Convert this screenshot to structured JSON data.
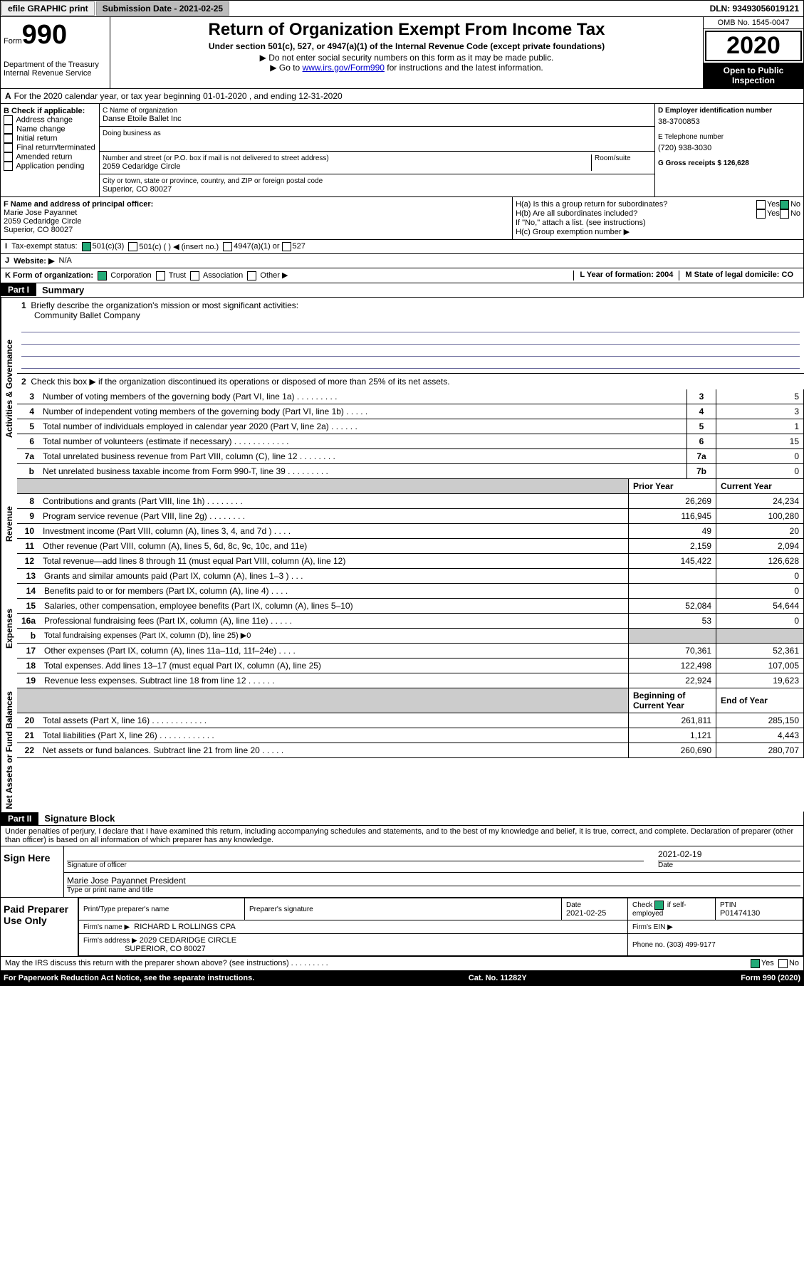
{
  "header": {
    "efile_label": "efile GRAPHIC print",
    "submission_label": "Submission Date - 2021-02-25",
    "dln": "DLN: 93493056019121"
  },
  "titleblock": {
    "form_label": "Form",
    "form_num": "990",
    "title": "Return of Organization Exempt From Income Tax",
    "subtitle1": "Under section 501(c), 527, or 4947(a)(1) of the Internal Revenue Code (except private foundations)",
    "subtitle2": "▶ Do not enter social security numbers on this form as it may be made public.",
    "subtitle3_pre": "▶ Go to ",
    "subtitle3_link": "www.irs.gov/Form990",
    "subtitle3_post": " for instructions and the latest information.",
    "dept1": "Department of the Treasury",
    "dept2": "Internal Revenue Service",
    "omb": "OMB No. 1545-0047",
    "year": "2020",
    "inspection": "Open to Public Inspection"
  },
  "period": "For the 2020 calendar year, or tax year beginning 01-01-2020    , and ending 12-31-2020",
  "b": {
    "header": "B Check if applicable:",
    "i1": "Address change",
    "i2": "Name change",
    "i3": "Initial return",
    "i4": "Final return/terminated",
    "i5": "Amended return",
    "i6": "Application pending"
  },
  "c": {
    "name_label": "C Name of organization",
    "name": "Danse Etoile Ballet Inc",
    "dba_label": "Doing business as",
    "addr_label": "Number and street (or P.O. box if mail is not delivered to street address)",
    "room_label": "Room/suite",
    "addr": "2059 Cedaridge Circle",
    "city_label": "City or town, state or province, country, and ZIP or foreign postal code",
    "city": "Superior, CO  80027"
  },
  "d": {
    "label": "D Employer identification number",
    "value": "38-3700853"
  },
  "e": {
    "label": "E Telephone number",
    "value": "(720) 938-3030"
  },
  "g": {
    "label": "G Gross receipts $ 126,628"
  },
  "f": {
    "label": "F  Name and address of principal officer:",
    "name": "Marie Jose Payannet",
    "addr1": "2059 Cedaridge Circle",
    "addr2": "Superior, CO  80027"
  },
  "h": {
    "a": "H(a)  Is this a group return for subordinates?",
    "b": "H(b)  Are all subordinates included?",
    "b2": "If \"No,\" attach a list. (see instructions)",
    "c": "H(c)  Group exemption number ▶"
  },
  "i": {
    "label": "Tax-exempt status:",
    "o1": "501(c)(3)",
    "o2": "501(c) (   ) ◀ (insert no.)",
    "o3": "4947(a)(1) or",
    "o4": "527"
  },
  "j": {
    "label": "Website: ▶",
    "value": "N/A"
  },
  "k": {
    "label": "K Form of organization:",
    "o1": "Corporation",
    "o2": "Trust",
    "o3": "Association",
    "o4": "Other ▶"
  },
  "l": {
    "label": "L Year of formation: 2004"
  },
  "m": {
    "label": "M State of legal domicile: CO"
  },
  "part1": {
    "tag": "Part I",
    "title": "Summary",
    "q1": "Briefly describe the organization's mission or most significant activities:",
    "q1a": "Community Ballet Company",
    "q2": "Check this box ▶         if the organization discontinued its operations or disposed of more than 25% of its net assets.",
    "rows": [
      {
        "n": "3",
        "t": "Number of voting members of the governing body (Part VI, line 1a)   .     .     .     .     .     .     .     .     .",
        "r": "3",
        "v": "5"
      },
      {
        "n": "4",
        "t": "Number of independent voting members of the governing body (Part VI, line 1b)   .     .     .     .     .",
        "r": "4",
        "v": "3"
      },
      {
        "n": "5",
        "t": "Total number of individuals employed in calendar year 2020 (Part V, line 2a)   .     .     .     .     .     .",
        "r": "5",
        "v": "1"
      },
      {
        "n": "6",
        "t": "Total number of volunteers (estimate if necessary)    .     .     .     .     .     .     .     .     .     .     .     .",
        "r": "6",
        "v": "15"
      },
      {
        "n": "7a",
        "t": "Total unrelated business revenue from Part VIII, column (C), line 12   .     .     .     .     .     .     .     .",
        "r": "7a",
        "v": "0"
      },
      {
        "n": "b",
        "t": "Net unrelated business taxable income from Form 990-T, line 39   .     .     .     .     .     .     .     .     .",
        "r": "7b",
        "v": "0"
      }
    ],
    "fin_hdr1": "Prior Year",
    "fin_hdr2": "Current Year",
    "revenue": [
      {
        "n": "8",
        "t": "Contributions and grants (Part VIII, line 1h)    .     .     .     .     .     .     .     .",
        "p": "26,269",
        "c": "24,234"
      },
      {
        "n": "9",
        "t": "Program service revenue (Part VIII, line 2g)    .     .     .     .     .     .     .     .",
        "p": "116,945",
        "c": "100,280"
      },
      {
        "n": "10",
        "t": "Investment income (Part VIII, column (A), lines 3, 4, and 7d )   .     .     .     .",
        "p": "49",
        "c": "20"
      },
      {
        "n": "11",
        "t": "Other revenue (Part VIII, column (A), lines 5, 6d, 8c, 9c, 10c, and 11e)",
        "p": "2,159",
        "c": "2,094"
      },
      {
        "n": "12",
        "t": "Total revenue—add lines 8 through 11 (must equal Part VIII, column (A), line 12)",
        "p": "145,422",
        "c": "126,628"
      }
    ],
    "expenses": [
      {
        "n": "13",
        "t": "Grants and similar amounts paid (Part IX, column (A), lines 1–3 )   .     .     .",
        "p": "",
        "c": "0"
      },
      {
        "n": "14",
        "t": "Benefits paid to or for members (Part IX, column (A), line 4)   .     .     .     .",
        "p": "",
        "c": "0"
      },
      {
        "n": "15",
        "t": "Salaries, other compensation, employee benefits (Part IX, column (A), lines 5–10)",
        "p": "52,084",
        "c": "54,644"
      },
      {
        "n": "16a",
        "t": "Professional fundraising fees (Part IX, column (A), line 11e)   .     .     .     .     .",
        "p": "53",
        "c": "0"
      },
      {
        "n": "b",
        "t": "Total fundraising expenses (Part IX, column (D), line 25) ▶0",
        "p": "",
        "c": ""
      },
      {
        "n": "17",
        "t": "Other expenses (Part IX, column (A), lines 11a–11d, 11f–24e)   .     .     .     .",
        "p": "70,361",
        "c": "52,361"
      },
      {
        "n": "18",
        "t": "Total expenses. Add lines 13–17 (must equal Part IX, column (A), line 25)",
        "p": "122,498",
        "c": "107,005"
      },
      {
        "n": "19",
        "t": "Revenue less expenses. Subtract line 18 from line 12   .     .     .     .     .     .",
        "p": "22,924",
        "c": "19,623"
      }
    ],
    "na_hdr1": "Beginning of Current Year",
    "na_hdr2": "End of Year",
    "netassets": [
      {
        "n": "20",
        "t": "Total assets (Part X, line 16)   .     .     .     .     .     .     .     .     .     .     .     .",
        "p": "261,811",
        "c": "285,150"
      },
      {
        "n": "21",
        "t": "Total liabilities (Part X, line 26)   .     .     .     .     .     .     .     .     .     .     .     .",
        "p": "1,121",
        "c": "4,443"
      },
      {
        "n": "22",
        "t": "Net assets or fund balances. Subtract line 21 from line 20   .     .     .     .     .",
        "p": "260,690",
        "c": "280,707"
      }
    ],
    "side_gov": "Activities & Governance",
    "side_rev": "Revenue",
    "side_exp": "Expenses",
    "side_na": "Net Assets or Fund Balances"
  },
  "part2": {
    "tag": "Part II",
    "title": "Signature Block",
    "decl": "Under penalties of perjury, I declare that I have examined this return, including accompanying schedules and statements, and to the best of my knowledge and belief, it is true, correct, and complete. Declaration of preparer (other than officer) is based on all information of which preparer has any knowledge.",
    "sign_here": "Sign Here",
    "sig_date": "2021-02-19",
    "sig_of": "Signature of officer",
    "sig_date_lbl": "Date",
    "sig_name": "Marie Jose Payannet President",
    "sig_name_lbl": "Type or print name and title",
    "paid": "Paid Preparer Use Only",
    "prep_name_lbl": "Print/Type preparer's name",
    "prep_sig_lbl": "Preparer's signature",
    "prep_date_lbl": "Date",
    "prep_date": "2021-02-25",
    "prep_check": "Check          if self-employed",
    "ptin_lbl": "PTIN",
    "ptin": "P01474130",
    "firm_name_lbl": "Firm's name      ▶",
    "firm_name": "RICHARD L ROLLINGS CPA",
    "firm_ein_lbl": "Firm's EIN ▶",
    "firm_addr_lbl": "Firm's address ▶",
    "firm_addr1": "2029 CEDARIDGE CIRCLE",
    "firm_addr2": "SUPERIOR, CO  80027",
    "firm_phone_lbl": "Phone no. (303) 499-9177",
    "irs_discuss": "May the IRS discuss this return with the preparer shown above? (see instructions)    .     .     .     .     .     .     .     .     ."
  },
  "footer": {
    "paperwork": "For Paperwork Reduction Act Notice, see the separate instructions.",
    "cat": "Cat. No. 11282Y",
    "form": "Form 990 (2020)"
  },
  "labels": {
    "yes": "Yes",
    "no": "No"
  }
}
